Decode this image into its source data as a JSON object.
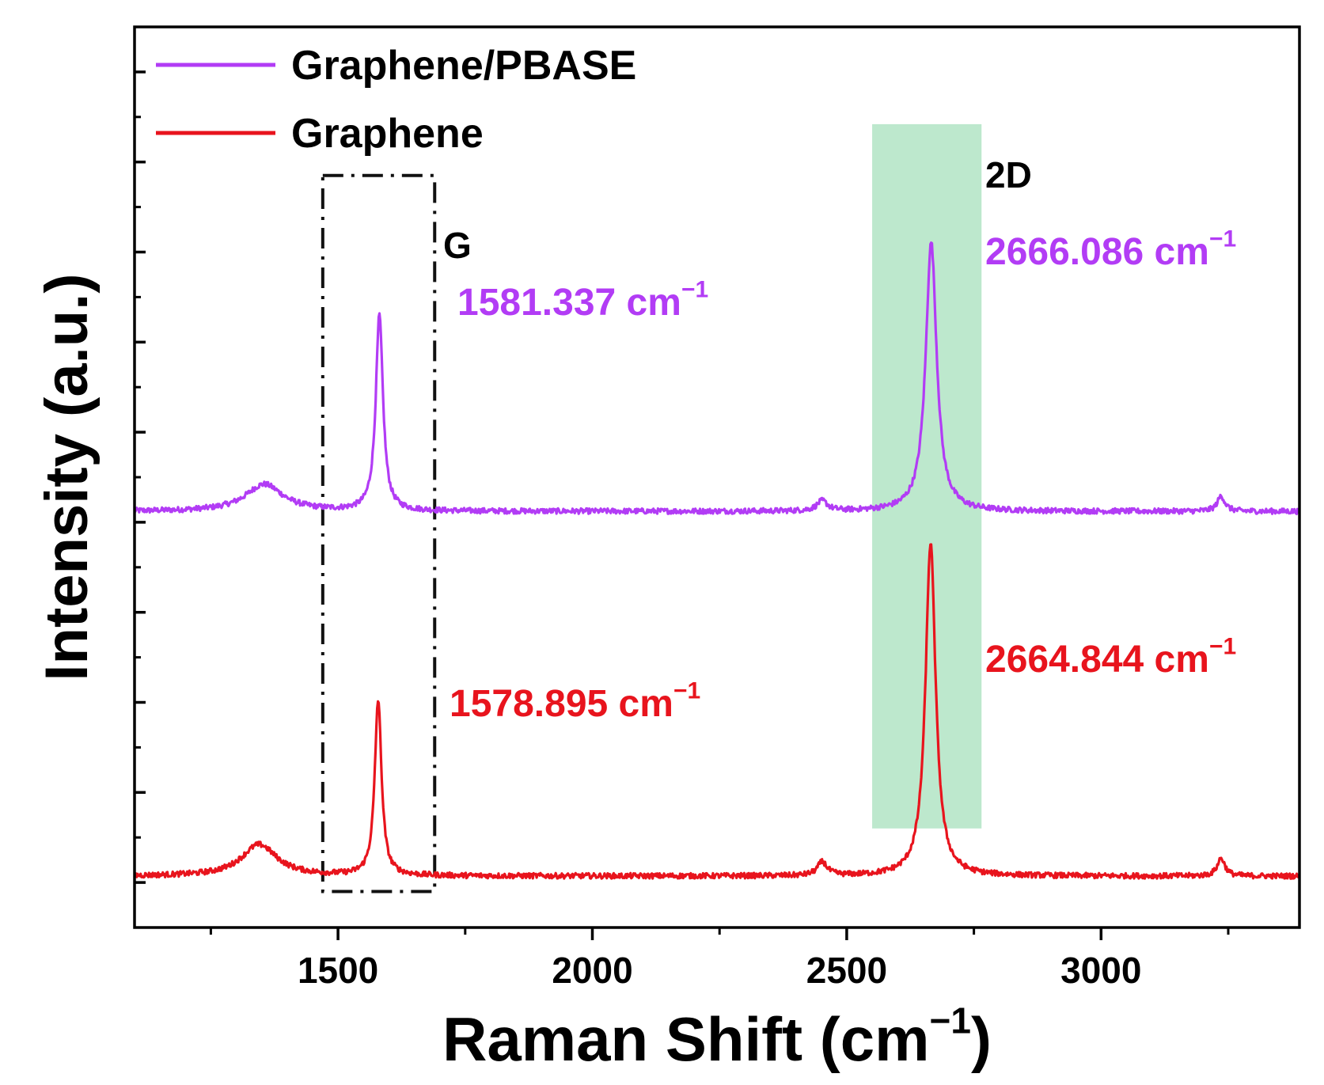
{
  "chart_data": {
    "type": "line",
    "title": "",
    "xlabel": "Raman Shift (cm",
    "xlabel_sup": "−1",
    "xlabel_close": ")",
    "ylabel": "Intensity (a.u.)",
    "xlim": [
      1100,
      3390
    ],
    "ylim": [
      0,
      100
    ],
    "x_ticks": [
      1500,
      2000,
      2500,
      3000
    ],
    "x_tick_labels": [
      "1500",
      "2000",
      "2500",
      "3000"
    ],
    "x_minor_ticks": [
      1250,
      1750,
      2250,
      2750,
      3250
    ],
    "y_ticks": [
      5,
      15,
      25,
      35,
      45,
      55,
      65,
      75,
      85,
      95
    ],
    "y_minor_ticks": [
      10,
      20,
      30,
      40,
      50,
      60,
      70,
      80,
      90
    ],
    "legend": "top-left",
    "series": [
      {
        "name": "Graphene/PBASE",
        "color": "#b23cf5",
        "baseline": 46.2,
        "peaks": [
          {
            "center": 1355,
            "width": 90,
            "height": 3.0
          },
          {
            "center": 1581.337,
            "width": 17,
            "height": 21.7
          },
          {
            "center": 2452,
            "width": 25,
            "height": 1.1
          },
          {
            "center": 2666.086,
            "width": 26,
            "height": 29.9
          },
          {
            "center": 3236,
            "width": 18,
            "height": 1.7
          }
        ]
      },
      {
        "name": "Graphene",
        "color": "#e8141d",
        "baseline": 5.7,
        "peaks": [
          {
            "center": 1345,
            "width": 85,
            "height": 3.5
          },
          {
            "center": 1578.895,
            "width": 16,
            "height": 19.5
          },
          {
            "center": 2452,
            "width": 23,
            "height": 1.5
          },
          {
            "center": 2664.844,
            "width": 24,
            "height": 37.0
          },
          {
            "center": 3236,
            "width": 18,
            "height": 2.0
          }
        ]
      }
    ],
    "annotations": {
      "g_label": "G",
      "d2_label": "2D",
      "g_box_range": [
        1470,
        1690
      ],
      "d2_band_range": [
        2550,
        2765
      ],
      "d2_band_color": "#bde8cd",
      "peak_labels": [
        {
          "value": "1581.337 cm",
          "sup": "−1",
          "color": "#b23cf5"
        },
        {
          "value": "1578.895 cm",
          "sup": "−1",
          "color": "#e8141d"
        },
        {
          "value": "2666.086 cm",
          "sup": "−1",
          "color": "#b23cf5"
        },
        {
          "value": "2664.844 cm",
          "sup": "−1",
          "color": "#e8141d"
        }
      ]
    }
  }
}
